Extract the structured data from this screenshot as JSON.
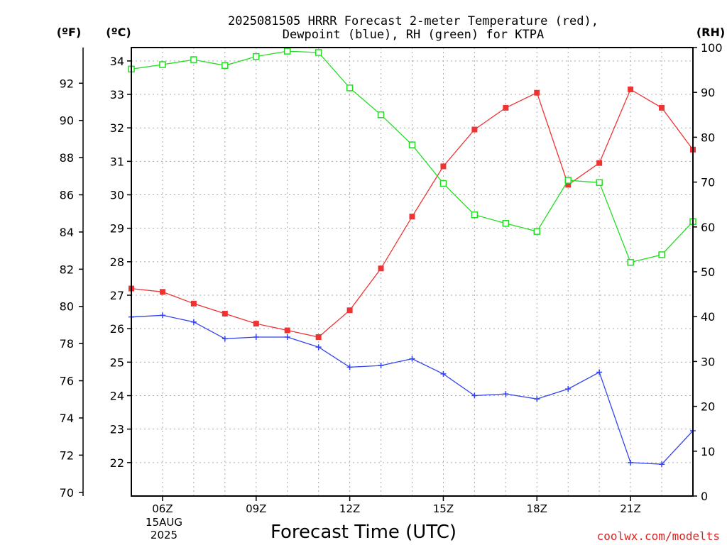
{
  "chart_data": {
    "type": "line",
    "title_line1": "2025081505 HRRR Forecast 2-meter Temperature (red),",
    "title_line2": "Dewpoint (blue), RH (green) for KTPA",
    "xlabel": "Forecast Time (UTC)",
    "watermark": "coolwx.com/modelts",
    "date_label_day": "15AUG",
    "date_label_year": "2025",
    "left_outer_axis": {
      "unit_label": "(ºF)",
      "range": [
        70,
        94
      ],
      "ticks": [
        70,
        72,
        74,
        76,
        78,
        80,
        82,
        84,
        86,
        88,
        90,
        92
      ]
    },
    "left_inner_axis": {
      "unit_label": "(ºC)",
      "range": [
        21,
        34.4
      ],
      "ticks": [
        22,
        23,
        24,
        25,
        26,
        27,
        28,
        29,
        30,
        31,
        32,
        33,
        34
      ]
    },
    "right_axis": {
      "unit_label": "(RH)",
      "range": [
        0,
        100
      ],
      "ticks": [
        0,
        10,
        20,
        30,
        40,
        50,
        60,
        70,
        80,
        90,
        100
      ]
    },
    "x_range": [
      5,
      23
    ],
    "x_tick_labels": [
      {
        "hour": 6,
        "label": "06Z"
      },
      {
        "hour": 9,
        "label": "09Z"
      },
      {
        "hour": 12,
        "label": "12Z"
      },
      {
        "hour": 15,
        "label": "15Z"
      },
      {
        "hour": 18,
        "label": "18Z"
      },
      {
        "hour": 21,
        "label": "21Z"
      }
    ],
    "grid": true,
    "x": [
      5,
      6,
      7,
      8,
      9,
      10,
      11,
      12,
      13,
      14,
      15,
      16,
      17,
      18,
      19,
      20,
      21,
      22,
      23
    ],
    "series": [
      {
        "key": "temperature",
        "axis": "celsius",
        "color": "#ee3333",
        "marker": "filled-square",
        "values": [
          27.2,
          27.1,
          26.75,
          26.45,
          26.15,
          25.95,
          25.75,
          26.55,
          27.8,
          29.35,
          30.85,
          31.95,
          32.6,
          33.05,
          30.3,
          30.95,
          33.15,
          32.6,
          31.35
        ]
      },
      {
        "key": "dewpoint",
        "axis": "celsius",
        "color": "#3344ee",
        "marker": "plus",
        "values": [
          26.35,
          26.4,
          26.2,
          25.7,
          25.75,
          25.75,
          25.45,
          24.85,
          24.9,
          25.1,
          24.65,
          24.0,
          24.05,
          23.9,
          24.2,
          24.7,
          22.0,
          21.95,
          22.95
        ]
      },
      {
        "key": "rh",
        "axis": "rh",
        "color": "#22dd22",
        "marker": "open-square",
        "values": [
          95.2,
          96.2,
          97.3,
          96.0,
          98.0,
          99.2,
          98.9,
          91.0,
          85.0,
          78.3,
          69.7,
          62.7,
          60.8,
          59.0,
          70.4,
          69.9,
          52.1,
          53.8,
          61.2
        ]
      }
    ]
  }
}
